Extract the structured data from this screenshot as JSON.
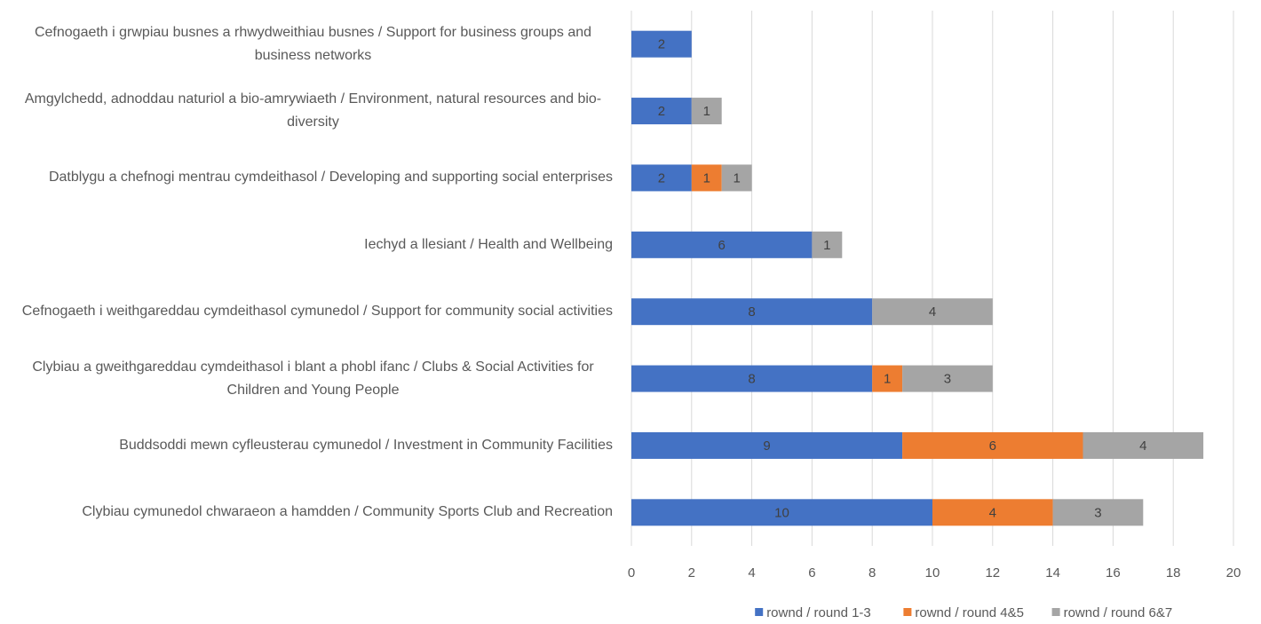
{
  "chart_data": {
    "type": "stacked-barh",
    "categories": [
      "Cefnogaeth i grwpiau busnes a rhwydweithiau busnes / Support for business groups and business networks",
      "Amgylchedd, adnoddau naturiol a bio-amrywiaeth / Environment, natural resources and bio-diversity",
      "Datblygu a chefnogi mentrau cymdeithasol / Developing and supporting social enterprises",
      "Iechyd a llesiant / Health and Wellbeing",
      "Cefnogaeth i weithgareddau cymdeithasol cymunedol  / Support for community social activities",
      "Clybiau a gweithgareddau cymdeithasol i blant a phobl ifanc  / Clubs & Social Activities for Children and Young People",
      "Buddsoddi mewn cyfleusterau cymunedol  / Investment in Community Facilities",
      "Clybiau cymunedol chwaraeon a hamdden / Community Sports Club and Recreation"
    ],
    "series": [
      {
        "name": "rownd / round 1-3",
        "color": "#4472c4",
        "values": [
          2,
          2,
          2,
          6,
          8,
          8,
          9,
          10
        ]
      },
      {
        "name": "rownd / round 4&5",
        "color": "#ed7d31",
        "values": [
          null,
          null,
          1,
          null,
          null,
          1,
          6,
          4
        ]
      },
      {
        "name": "rownd / round 6&7",
        "color": "#a5a5a5",
        "values": [
          null,
          1,
          1,
          1,
          4,
          3,
          4,
          3
        ]
      }
    ],
    "xlim": [
      0,
      20
    ],
    "xticks": [
      0,
      2,
      4,
      6,
      8,
      10,
      12,
      14,
      16,
      18,
      20
    ],
    "grid": true,
    "legend": "bottom"
  }
}
